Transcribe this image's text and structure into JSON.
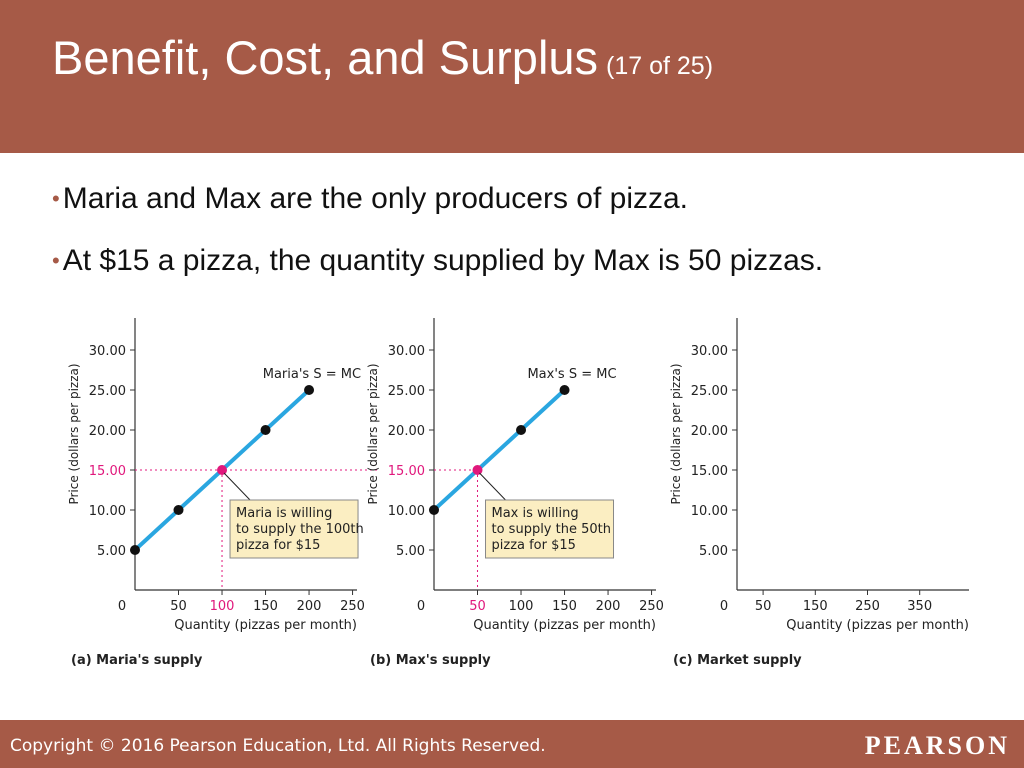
{
  "slide": {
    "title": "Benefit, Cost, and Surplus",
    "title_suffix": "(17 of 25)",
    "bullets": [
      "Maria and Max are the only producers of pizza.",
      "At $15 a pizza, the quantity supplied by Max is 50 pizzas."
    ]
  },
  "footer": {
    "copyright": "Copyright © 2016 Pearson Education, Ltd. All Rights Reserved.",
    "brand": "PEARSON"
  },
  "colors": {
    "header": "#a65a47",
    "line": "#2aa6e0",
    "highlight": "#e0187c",
    "callout_bg": "#fbeec2",
    "point": "#111111"
  },
  "chart_data": [
    {
      "type": "line",
      "panel_label": "(a) Maria's supply",
      "ylabel": "Price (dollars per pizza)",
      "xlabel": "Quantity (pizzas per month)",
      "xlim": [
        0,
        250
      ],
      "ylim": [
        0,
        33
      ],
      "x_ticks": [
        "0",
        "50",
        "100",
        "150",
        "200",
        "250"
      ],
      "y_ticks": [
        "5.00",
        "10.00",
        "15.00",
        "20.00",
        "25.00",
        "30.00"
      ],
      "series": [
        {
          "name": "Maria's S = MC",
          "x": [
            0,
            50,
            100,
            150,
            200
          ],
          "y": [
            5,
            10,
            15,
            20,
            25
          ]
        }
      ],
      "highlight": {
        "x": 100,
        "y": 15,
        "x_label": "100",
        "y_label": "15.00"
      },
      "callout": [
        "Maria is willing",
        "to supply the 100th",
        "pizza for $15"
      ]
    },
    {
      "type": "line",
      "panel_label": "(b) Max's supply",
      "ylabel": "Price (dollars per pizza)",
      "xlabel": "Quantity (pizzas per month)",
      "xlim": [
        0,
        250
      ],
      "ylim": [
        0,
        33
      ],
      "x_ticks": [
        "0",
        "50",
        "100",
        "150",
        "200",
        "250"
      ],
      "y_ticks": [
        "5.00",
        "10.00",
        "15.00",
        "20.00",
        "25.00",
        "30.00"
      ],
      "series": [
        {
          "name": "Max's S = MC",
          "x": [
            0,
            50,
            100,
            150
          ],
          "y": [
            10,
            15,
            20,
            25
          ]
        }
      ],
      "highlight": {
        "x": 50,
        "y": 15,
        "x_label": "50",
        "y_label": "15.00"
      },
      "callout": [
        "Max is willing",
        "to supply the 50th",
        "pizza for $15"
      ]
    },
    {
      "type": "line",
      "panel_label": "(c) Market supply",
      "ylabel": "Price (dollars per pizza)",
      "xlabel": "Quantity (pizzas per month)",
      "xlim": [
        0,
        400
      ],
      "ylim": [
        0,
        33
      ],
      "x_ticks": [
        "0",
        "50",
        "150",
        "250",
        "350"
      ],
      "y_ticks": [
        "5.00",
        "10.00",
        "15.00",
        "20.00",
        "25.00",
        "30.00"
      ],
      "series": []
    }
  ]
}
